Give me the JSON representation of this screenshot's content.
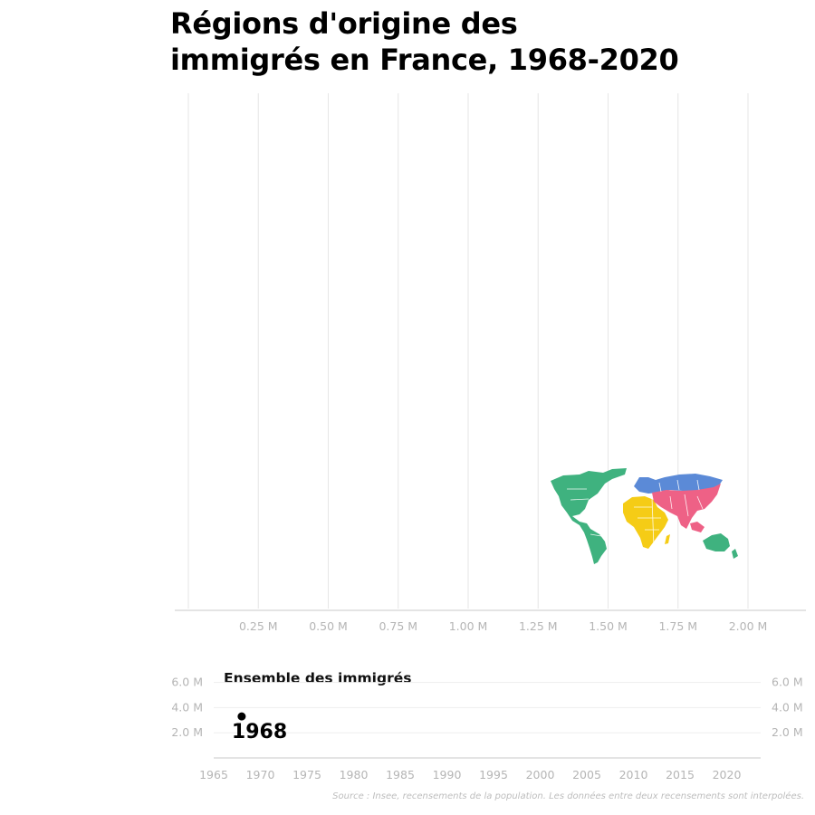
{
  "title_line1": "Régions d'origine des",
  "title_line2": "immigrés en France, 1968-2020",
  "source": "Source : Insee, recensements de la population. Les données entre deux recensements sont interpolées.",
  "colors": {
    "americas": "#3fb27f",
    "europe": "#5b8ad7",
    "africa": "#f5cc16",
    "asia": "#ee6186",
    "oceania": "#3fb27f",
    "grid": "#e6e6e6",
    "axis": "#c8c8c8",
    "tick_text": "#b5b5b5"
  },
  "chart_data": [
    {
      "type": "bar",
      "title": "Régions d'origine des immigrés en France, 1968-2020",
      "orientation": "horizontal",
      "xlabel": "",
      "ylabel": "",
      "xlim": [
        0,
        2.25
      ],
      "x_ticks": [
        0.25,
        0.5,
        0.75,
        1.0,
        1.25,
        1.5,
        1.75,
        2.0
      ],
      "x_tick_labels": [
        "0.25 M",
        "0.50 M",
        "0.75 M",
        "1.00 M",
        "1.25 M",
        "1.50 M",
        "1.75 M",
        "2.00 M"
      ],
      "grid": true,
      "categories": [],
      "values": [],
      "legend": {
        "type": "world-map",
        "placement": "bottom-right",
        "regions": [
          "americas",
          "europe",
          "africa",
          "asia",
          "oceania"
        ]
      }
    },
    {
      "type": "line",
      "title": "Ensemble des immigrés",
      "xlim": [
        1965,
        2023
      ],
      "x_ticks": [
        1965,
        1970,
        1975,
        1980,
        1985,
        1990,
        1995,
        2000,
        2005,
        2010,
        2015,
        2020
      ],
      "x_tick_labels": [
        "1965",
        "1970",
        "1975",
        "1980",
        "1985",
        "1990",
        "1995",
        "2000",
        "2005",
        "2010",
        "2015",
        "2020"
      ],
      "ylim": [
        0,
        7.0
      ],
      "y_ticks": [
        2.0,
        4.0,
        6.0
      ],
      "y_tick_labels": [
        "2.0 M",
        "4.0 M",
        "6.0 M"
      ],
      "series": [
        {
          "name": "Ensemble des immigrés",
          "x": [
            1968
          ],
          "y": [
            3.3
          ]
        }
      ],
      "current_year": 1968,
      "current_year_label": "1968"
    }
  ]
}
